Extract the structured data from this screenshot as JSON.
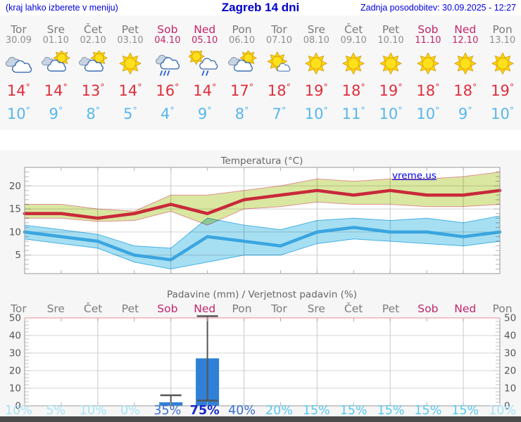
{
  "header": {
    "left_note": "(kraj lahko izberete v meniju)",
    "title": "Zagreb 14 dni",
    "updated": "Zadnja posodobitev: 30.09.2025 - 12:27"
  },
  "watermark": "vreme.us",
  "style": {
    "weekday_color": "#7c7c7c",
    "weekend_color": "#c2256b",
    "date_weekday_color": "#8f8f8f",
    "high_color": "#e02e3c",
    "low_color": "#57b7ed",
    "prob_scale": [
      {
        "max": 10,
        "color": "#a5e3f8"
      },
      {
        "max": 29,
        "color": "#58c8f0"
      },
      {
        "max": 69,
        "color": "#3a6fd0"
      },
      {
        "max": 100,
        "color": "#1728cf"
      }
    ]
  },
  "days": [
    {
      "name": "Tor",
      "date": "30.09",
      "weekend": false,
      "icon": "cloudy",
      "high": 14,
      "low": 10
    },
    {
      "name": "Sre",
      "date": "01.10",
      "weekend": false,
      "icon": "partly-cloudy",
      "high": 14,
      "low": 9
    },
    {
      "name": "Čet",
      "date": "02.10",
      "weekend": false,
      "icon": "partly-cloudy",
      "high": 13,
      "low": 8
    },
    {
      "name": "Pet",
      "date": "03.10",
      "weekend": false,
      "icon": "sunny",
      "high": 14,
      "low": 5
    },
    {
      "name": "Sob",
      "date": "04.10",
      "weekend": true,
      "icon": "rain",
      "high": 16,
      "low": 4
    },
    {
      "name": "Ned",
      "date": "05.10",
      "weekend": true,
      "icon": "sun-showers",
      "high": 14,
      "low": 9
    },
    {
      "name": "Pon",
      "date": "06.10",
      "weekend": false,
      "icon": "partly-cloudy",
      "high": 17,
      "low": 8
    },
    {
      "name": "Tor",
      "date": "07.10",
      "weekend": false,
      "icon": "mostly-sunny",
      "high": 18,
      "low": 7
    },
    {
      "name": "Sre",
      "date": "08.10",
      "weekend": false,
      "icon": "sunny",
      "high": 19,
      "low": 10
    },
    {
      "name": "Čet",
      "date": "09.10",
      "weekend": false,
      "icon": "sunny",
      "high": 18,
      "low": 11
    },
    {
      "name": "Pet",
      "date": "10.10",
      "weekend": false,
      "icon": "sunny",
      "high": 19,
      "low": 10
    },
    {
      "name": "Sob",
      "date": "11.10",
      "weekend": true,
      "icon": "sunny",
      "high": 18,
      "low": 10
    },
    {
      "name": "Ned",
      "date": "12.10",
      "weekend": true,
      "icon": "sunny",
      "high": 18,
      "low": 9
    },
    {
      "name": "Pon",
      "date": "13.10",
      "weekend": false,
      "icon": "sunny",
      "high": 19,
      "low": 10
    }
  ],
  "chart_data": [
    {
      "type": "line",
      "title": "Temperatura (°C)",
      "categories": [
        "Tor",
        "Sre",
        "Čet",
        "Pet",
        "Sob",
        "Ned",
        "Pon",
        "Tor",
        "Sre",
        "Čet",
        "Pet",
        "Sob",
        "Ned",
        "Pon"
      ],
      "ylim": [
        1,
        24
      ],
      "yticks": [
        5,
        10,
        15,
        20
      ],
      "grid": true,
      "series": [
        {
          "name": "max-temp",
          "color": "#c9293a",
          "values": [
            14,
            14,
            13,
            14,
            16,
            14,
            17,
            18,
            19,
            18,
            19,
            18,
            18,
            19
          ]
        },
        {
          "name": "max-temp-range-upper",
          "color": "#e09090",
          "values": [
            16,
            16,
            15,
            14.5,
            18,
            18,
            19,
            20,
            21.5,
            21,
            21.5,
            21.5,
            22,
            23
          ]
        },
        {
          "name": "max-temp-range-lower",
          "color": "#e09090",
          "values": [
            13,
            13,
            12.3,
            12.5,
            14.5,
            11.5,
            15,
            15.5,
            16.5,
            16,
            16,
            15.5,
            15.5,
            16
          ]
        },
        {
          "name": "min-temp",
          "color": "#3aa5e0",
          "values": [
            10,
            9,
            8,
            5,
            4,
            9,
            8,
            7,
            10,
            11,
            10,
            10,
            9,
            10
          ]
        },
        {
          "name": "min-temp-range-upper",
          "color": "#45b0e6",
          "values": [
            11.5,
            10.5,
            9.5,
            7,
            6.5,
            13,
            11.5,
            10.5,
            12.5,
            13,
            12.5,
            13,
            12,
            13.5
          ]
        },
        {
          "name": "min-temp-range-lower",
          "color": "#45b0e6",
          "values": [
            8.5,
            7.5,
            6.5,
            3.5,
            2,
            3.5,
            5,
            5,
            7.5,
            8.5,
            8,
            7.5,
            7,
            8
          ]
        }
      ],
      "band_colors": {
        "max_band": "#d9e7a0",
        "min_band": "#a6dff2"
      }
    },
    {
      "type": "bar",
      "title": "Padavine (mm) / Verjetnost padavin (%)",
      "categories": [
        "Tor",
        "Sre",
        "Čet",
        "Pet",
        "Sob",
        "Ned",
        "Pon",
        "Tor",
        "Sre",
        "Čet",
        "Pet",
        "Sob",
        "Ned",
        "Pon"
      ],
      "ylim": [
        0,
        50
      ],
      "yticks": [
        0,
        10,
        20,
        30,
        40,
        50
      ],
      "grid": true,
      "bar_color": "#2f80d6",
      "values": [
        0,
        0,
        0,
        0,
        2,
        27,
        0,
        0,
        0,
        0,
        0,
        0,
        0,
        0
      ],
      "whisker_low": [
        0,
        0,
        0,
        0,
        0,
        3,
        0,
        0,
        0,
        0,
        0,
        0,
        0,
        0
      ],
      "whisker_high": [
        0,
        0,
        0,
        0,
        6,
        51,
        0,
        0,
        0,
        0,
        0,
        0,
        0,
        0
      ],
      "probabilities": [
        "10%",
        "5%",
        "10%",
        "0%",
        "35%",
        "75%",
        "40%",
        "20%",
        "15%",
        "15%",
        "15%",
        "15%",
        "15%",
        "10%"
      ]
    }
  ]
}
